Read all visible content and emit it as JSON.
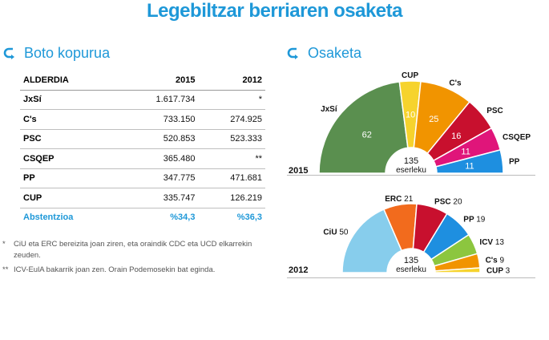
{
  "title": "Legebiltzar berriaren osaketa",
  "left_heading": "Boto kopurua",
  "right_heading": "Osaketa",
  "table": {
    "headers": [
      "ALDERDIA",
      "2015",
      "2012"
    ],
    "rows": [
      [
        "JxSí",
        "1.617.734",
        "*"
      ],
      [
        "C's",
        "733.150",
        "274.925"
      ],
      [
        "PSC",
        "520.853",
        "523.333"
      ],
      [
        "CSQEP",
        "365.480",
        "**"
      ],
      [
        "PP",
        "347.775",
        "471.681"
      ],
      [
        "CUP",
        "335.747",
        "126.219"
      ],
      [
        "Abstentzioa",
        "%34,3",
        "%36,3"
      ]
    ]
  },
  "notes": [
    {
      "mark": "*",
      "text": "CiU eta ERC bereizita joan ziren, eta oraindik CDC eta UCD elkarrekin zeuden."
    },
    {
      "mark": "**",
      "text": "ICV-EulA bakarrik joan zen. Orain Podemosekin bat eginda."
    }
  ],
  "chart_data": [
    {
      "type": "pie",
      "subtype": "parliament-semicircle",
      "year_label": "2015",
      "center_label": [
        "135",
        "eserleku"
      ],
      "categories": [
        "JxSí",
        "CUP",
        "C's",
        "PSC",
        "CSQEP",
        "PP"
      ],
      "values": [
        62,
        10,
        25,
        16,
        11,
        11
      ],
      "colors": [
        "#5a8f4f",
        "#f6d32d",
        "#f19400",
        "#c8102e",
        "#e0157a",
        "#1e8fe0"
      ]
    },
    {
      "type": "pie",
      "subtype": "parliament-semicircle",
      "year_label": "2012",
      "center_label": [
        "135",
        "eserleku"
      ],
      "categories": [
        "CiU",
        "ERC",
        "PSC",
        "PP",
        "ICV",
        "C's",
        "CUP"
      ],
      "values": [
        50,
        21,
        20,
        19,
        13,
        9,
        3
      ],
      "colors": [
        "#87cdec",
        "#f26b1d",
        "#c8102e",
        "#1e8fe0",
        "#8cc63f",
        "#f19400",
        "#f6d32d"
      ]
    }
  ]
}
